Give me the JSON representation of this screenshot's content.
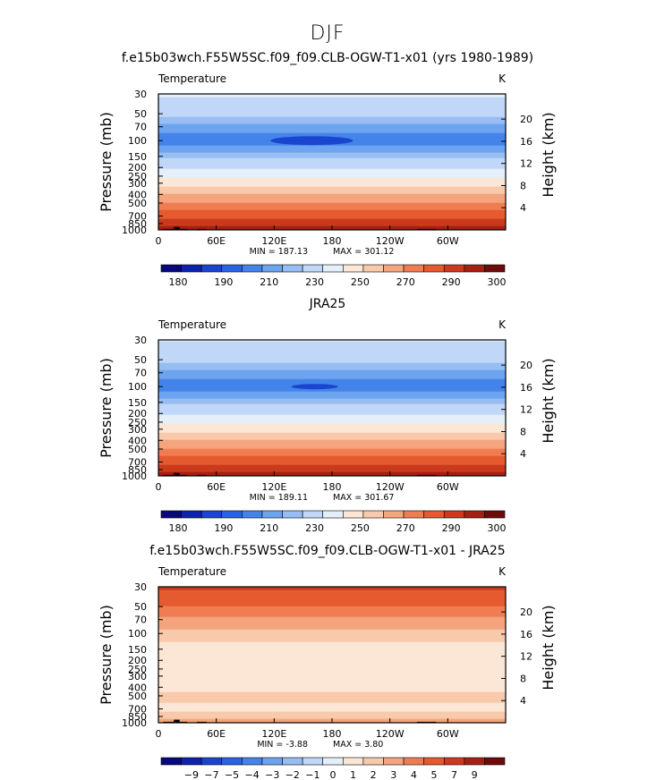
{
  "figure": {
    "supertitle": "DJF"
  },
  "colormaps": {
    "temperature": [
      "#08087e",
      "#0e23ad",
      "#1a46cf",
      "#2a63e1",
      "#4484ea",
      "#6da4ef",
      "#97bdf3",
      "#c0d7f7",
      "#e4effa",
      "#fce6d6",
      "#f8c9ab",
      "#f4a57d",
      "#f07d51",
      "#e55a2e",
      "#cb3a1c",
      "#a52012",
      "#700b0b"
    ],
    "difference": [
      "#08087e",
      "#0e23ad",
      "#1a46cf",
      "#2a63e1",
      "#4484ea",
      "#6da4ef",
      "#97bdf3",
      "#c0d7f7",
      "#e4effa",
      "#fce6d6",
      "#f8c9ab",
      "#f4a57d",
      "#f07d51",
      "#e55a2e",
      "#cb3a1c",
      "#a52012",
      "#700b0b"
    ]
  },
  "chart_data": [
    {
      "type": "heatmap",
      "title": "f.e15b03wch.F55W5SC.f09_f09.CLB-OGW-T1-x01 (yrs 1980-1989)",
      "variable": "Temperature",
      "units": "K",
      "ylabel": "Pressure (mb)",
      "y2label": "Height (km)",
      "xlabel": "",
      "x_ticks": [
        "0",
        "60E",
        "120E",
        "180",
        "120W",
        "60W"
      ],
      "x_tick_values": [
        0,
        60,
        120,
        180,
        240,
        300
      ],
      "xlim": [
        0,
        360
      ],
      "y_ticks": [
        "30",
        "50",
        "70",
        "100",
        "150",
        "200",
        "250",
        "300",
        "400",
        "500",
        "700",
        "850",
        "1000"
      ],
      "y_tick_values": [
        30,
        50,
        70,
        100,
        150,
        200,
        250,
        300,
        400,
        500,
        700,
        850,
        1000
      ],
      "ylim": [
        1000,
        30
      ],
      "y_scale": "log",
      "y2_ticks": [
        "4",
        "8",
        "12",
        "16",
        "20"
      ],
      "y2_tick_values": [
        4,
        8,
        12,
        16,
        20
      ],
      "min_label": "MIN = 187.13",
      "max_label": "MAX = 301.12",
      "colorbar_labels": [
        "180",
        "190",
        "210",
        "230",
        "250",
        "270",
        "290",
        "300"
      ],
      "contour_levels": [
        180,
        185,
        190,
        195,
        200,
        205,
        210,
        220,
        230,
        240,
        250,
        260,
        270,
        280,
        290,
        295,
        300
      ],
      "profile": [
        {
          "p": 30,
          "v": 222
        },
        {
          "p": 40,
          "v": 217
        },
        {
          "p": 50,
          "v": 213
        },
        {
          "p": 60,
          "v": 208
        },
        {
          "p": 70,
          "v": 203
        },
        {
          "p": 85,
          "v": 199
        },
        {
          "p": 100,
          "v": 196
        },
        {
          "p": 125,
          "v": 202
        },
        {
          "p": 150,
          "v": 208
        },
        {
          "p": 175,
          "v": 213
        },
        {
          "p": 200,
          "v": 218
        },
        {
          "p": 250,
          "v": 227
        },
        {
          "p": 300,
          "v": 235
        },
        {
          "p": 350,
          "v": 243
        },
        {
          "p": 400,
          "v": 250
        },
        {
          "p": 450,
          "v": 256
        },
        {
          "p": 500,
          "v": 261
        },
        {
          "p": 600,
          "v": 269
        },
        {
          "p": 700,
          "v": 276
        },
        {
          "p": 850,
          "v": 285
        },
        {
          "p": 925,
          "v": 290
        },
        {
          "p": 1000,
          "v": 295
        }
      ],
      "cold_spot": {
        "lon": 159,
        "p": 100,
        "v": 187
      }
    },
    {
      "type": "heatmap",
      "title": "JRA25",
      "variable": "Temperature",
      "units": "K",
      "ylabel": "Pressure (mb)",
      "y2label": "Height (km)",
      "xlabel": "",
      "x_ticks": [
        "0",
        "60E",
        "120E",
        "180",
        "120W",
        "60W"
      ],
      "x_tick_values": [
        0,
        60,
        120,
        180,
        240,
        300
      ],
      "xlim": [
        0,
        360
      ],
      "y_ticks": [
        "30",
        "50",
        "70",
        "100",
        "150",
        "200",
        "250",
        "300",
        "400",
        "500",
        "700",
        "850",
        "1000"
      ],
      "y_tick_values": [
        30,
        50,
        70,
        100,
        150,
        200,
        250,
        300,
        400,
        500,
        700,
        850,
        1000
      ],
      "ylim": [
        1000,
        30
      ],
      "y_scale": "log",
      "y2_ticks": [
        "4",
        "8",
        "12",
        "16",
        "20"
      ],
      "y2_tick_values": [
        4,
        8,
        12,
        16,
        20
      ],
      "min_label": "MIN = 189.11",
      "max_label": "MAX = 301.67",
      "colorbar_labels": [
        "180",
        "190",
        "210",
        "230",
        "250",
        "270",
        "290",
        "300"
      ],
      "contour_levels": [
        180,
        185,
        190,
        195,
        200,
        205,
        210,
        220,
        230,
        240,
        250,
        260,
        270,
        280,
        290,
        295,
        300
      ],
      "profile": [
        {
          "p": 30,
          "v": 221
        },
        {
          "p": 40,
          "v": 216
        },
        {
          "p": 50,
          "v": 212
        },
        {
          "p": 60,
          "v": 207
        },
        {
          "p": 70,
          "v": 203
        },
        {
          "p": 85,
          "v": 199
        },
        {
          "p": 100,
          "v": 197
        },
        {
          "p": 125,
          "v": 202
        },
        {
          "p": 150,
          "v": 208
        },
        {
          "p": 175,
          "v": 213
        },
        {
          "p": 200,
          "v": 218
        },
        {
          "p": 250,
          "v": 227
        },
        {
          "p": 300,
          "v": 235
        },
        {
          "p": 350,
          "v": 243
        },
        {
          "p": 400,
          "v": 250
        },
        {
          "p": 450,
          "v": 256
        },
        {
          "p": 500,
          "v": 261
        },
        {
          "p": 600,
          "v": 269
        },
        {
          "p": 700,
          "v": 276
        },
        {
          "p": 850,
          "v": 285
        },
        {
          "p": 925,
          "v": 291
        },
        {
          "p": 1000,
          "v": 296
        }
      ],
      "cold_spot": {
        "lon": 162,
        "p": 100,
        "v": 189
      }
    },
    {
      "type": "heatmap",
      "title": "f.e15b03wch.F55W5SC.f09_f09.CLB-OGW-T1-x01 - JRA25",
      "variable": "Temperature",
      "units": "K",
      "ylabel": "Pressure (mb)",
      "y2label": "Height (km)",
      "xlabel": "",
      "x_ticks": [
        "0",
        "60E",
        "120E",
        "180",
        "120W",
        "60W"
      ],
      "x_tick_values": [
        0,
        60,
        120,
        180,
        240,
        300
      ],
      "xlim": [
        0,
        360
      ],
      "y_ticks": [
        "30",
        "50",
        "70",
        "100",
        "150",
        "200",
        "250",
        "300",
        "400",
        "500",
        "700",
        "850",
        "1000"
      ],
      "y_tick_values": [
        30,
        50,
        70,
        100,
        150,
        200,
        250,
        300,
        400,
        500,
        700,
        850,
        1000
      ],
      "ylim": [
        1000,
        30
      ],
      "y_scale": "log",
      "y2_ticks": [
        "4",
        "8",
        "12",
        "16",
        "20"
      ],
      "y2_tick_values": [
        4,
        8,
        12,
        16,
        20
      ],
      "min_label": "MIN = -3.88",
      "max_label": "MAX = 3.80",
      "colorbar_labels": [
        "-9",
        "-7",
        "-5",
        "-4",
        "-3",
        "-2",
        "-1",
        "0",
        "1",
        "2",
        "3",
        "4",
        "5",
        "7",
        "9"
      ],
      "contour_levels": [
        -10,
        -9,
        -8,
        -7,
        -6,
        -5,
        -4,
        -3,
        -2,
        -1,
        0,
        1,
        2,
        3,
        4,
        5,
        6,
        7,
        8,
        9,
        10
      ],
      "profile": [
        {
          "p": 30,
          "v": 3.2
        },
        {
          "p": 40,
          "v": 2.6
        },
        {
          "p": 50,
          "v": 2.0
        },
        {
          "p": 60,
          "v": 1.4
        },
        {
          "p": 70,
          "v": 0.8
        },
        {
          "p": 85,
          "v": 0.3
        },
        {
          "p": 100,
          "v": -0.4
        },
        {
          "p": 125,
          "v": -1.0
        },
        {
          "p": 150,
          "v": -1.4
        },
        {
          "p": 200,
          "v": -1.6
        },
        {
          "p": 250,
          "v": -1.8
        },
        {
          "p": 300,
          "v": -1.7
        },
        {
          "p": 400,
          "v": -1.3
        },
        {
          "p": 500,
          "v": -0.8
        },
        {
          "p": 600,
          "v": -1.0
        },
        {
          "p": 700,
          "v": -1.4
        },
        {
          "p": 850,
          "v": -0.4
        },
        {
          "p": 925,
          "v": 0.2
        },
        {
          "p": 1000,
          "v": 0.5
        }
      ]
    }
  ]
}
